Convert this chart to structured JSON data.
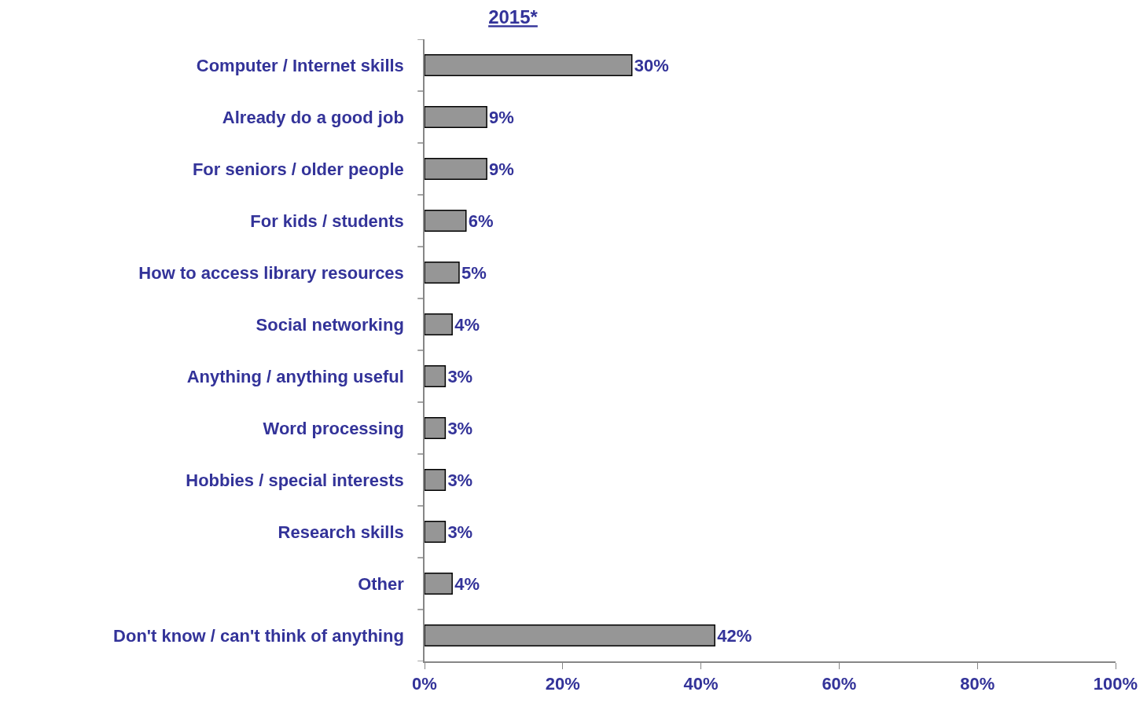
{
  "chart_data": {
    "type": "bar",
    "orientation": "horizontal",
    "title": "2015*",
    "categories": [
      "Computer / Internet skills",
      "Already do a good job",
      "For seniors / older people",
      "For kids / students",
      "How to access library resources",
      "Social networking",
      "Anything / anything useful",
      "Word processing",
      "Hobbies / special interests",
      "Research skills",
      "Other",
      "Don't know / can't think of anything"
    ],
    "values": [
      30,
      9,
      9,
      6,
      5,
      4,
      3,
      3,
      3,
      3,
      4,
      42
    ],
    "value_labels": [
      "30%",
      "9%",
      "9%",
      "6%",
      "5%",
      "4%",
      "3%",
      "3%",
      "3%",
      "3%",
      "4%",
      "42%"
    ],
    "color": "#969696",
    "xlim": [
      0,
      100
    ],
    "xticks": [
      {
        "value": 0,
        "label": "0%"
      },
      {
        "value": 20,
        "label": "20%"
      },
      {
        "value": 40,
        "label": "40%"
      },
      {
        "value": 60,
        "label": "60%"
      },
      {
        "value": 80,
        "label": "80%"
      },
      {
        "value": 100,
        "label": "100%"
      }
    ],
    "legend": false
  }
}
